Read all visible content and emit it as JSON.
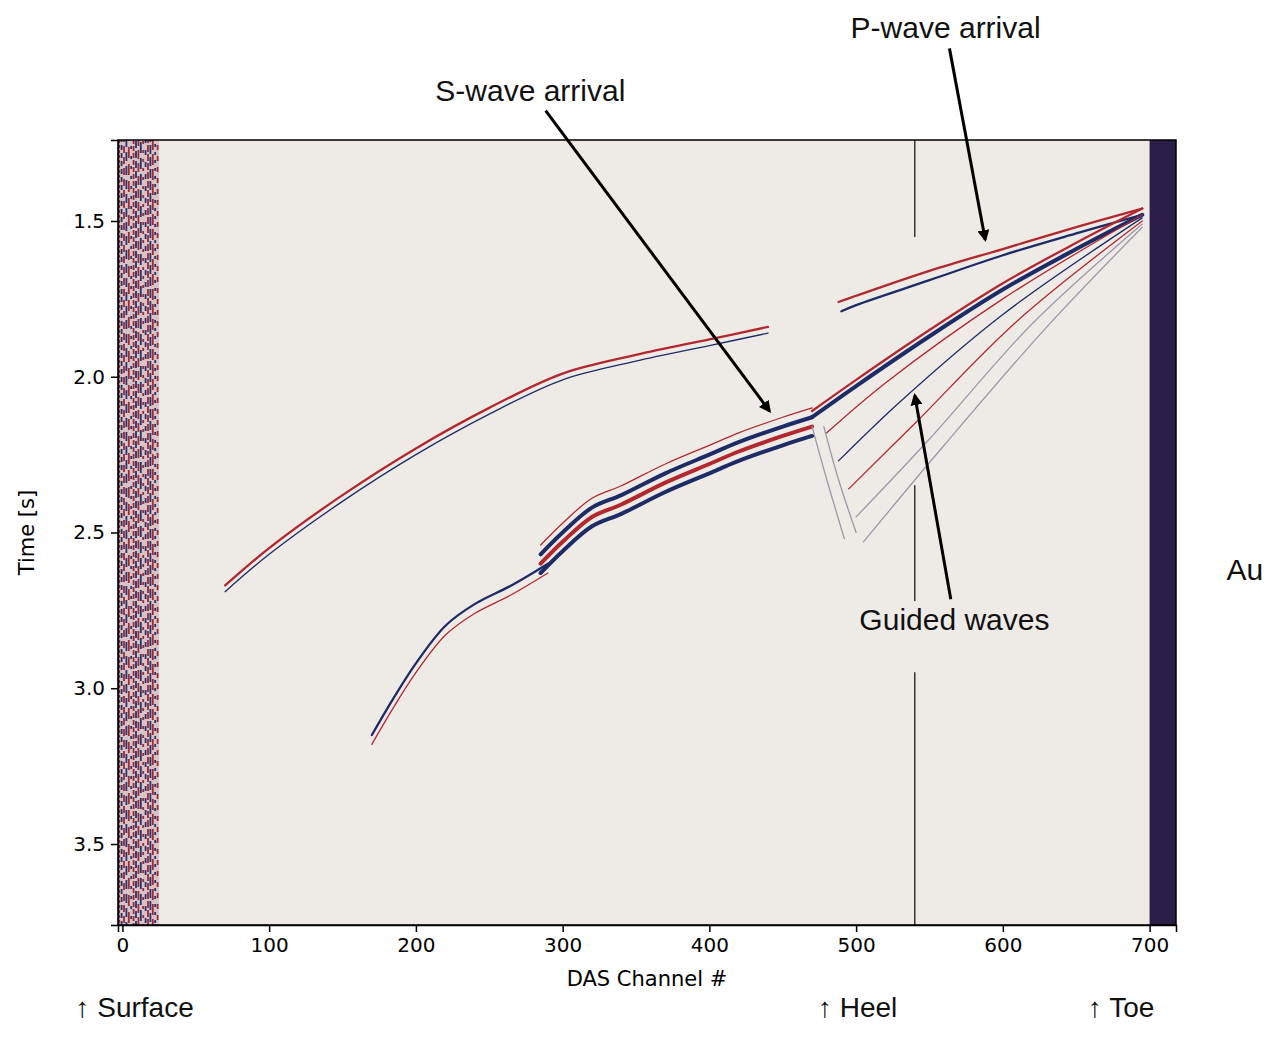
{
  "chart_data": {
    "type": "line",
    "xlabel": "DAS Channel #",
    "ylabel": "Time [s]",
    "xlim": [
      -3,
      718
    ],
    "ylim": [
      3.76,
      1.24
    ],
    "xticks": [
      0,
      100,
      200,
      300,
      400,
      500,
      600,
      700
    ],
    "yticks": [
      1.5,
      {
        "value": 2,
        "label": "2.0"
      },
      2.5,
      {
        "value": 3,
        "label": "3.0"
      },
      3.5
    ],
    "grid": false,
    "regions": [
      {
        "x": [
          -3,
          25
        ],
        "colors": [
          "#9e2a36",
          "#25356e",
          "#d8c4c6"
        ]
      },
      {
        "x": [
          700,
          718
        ],
        "color": "#2a1e48"
      }
    ],
    "series": [
      {
        "color": "#b2282f",
        "line_style": "solid",
        "x": [
          695,
          650,
          600,
          550,
          500,
          488
        ],
        "values": [
          1.46,
          1.52,
          1.59,
          1.66,
          1.74,
          1.76
        ]
      },
      {
        "color": "#1d2b66",
        "line_style": "solid",
        "x": [
          695,
          650,
          600,
          550,
          500,
          490
        ],
        "values": [
          1.48,
          1.54,
          1.61,
          1.69,
          1.77,
          1.79
        ]
      },
      {
        "color": "#b2282f",
        "line_style": "solid",
        "x": [
          440,
          400,
          350,
          300,
          250,
          200,
          150,
          100,
          70
        ],
        "values": [
          1.84,
          1.88,
          1.93,
          1.99,
          2.1,
          2.23,
          2.38,
          2.55,
          2.67
        ]
      },
      {
        "color": "#1d2b66",
        "line_style": "thin",
        "x": [
          440,
          400,
          350,
          300,
          250,
          200,
          150,
          100,
          70
        ],
        "values": [
          1.86,
          1.9,
          1.95,
          2.01,
          2.12,
          2.25,
          2.4,
          2.57,
          2.69
        ]
      },
      {
        "color": "#b2282f",
        "line_style": "solid",
        "x": [
          695,
          650,
          600,
          550,
          500,
          470
        ],
        "values": [
          1.46,
          1.57,
          1.7,
          1.85,
          2.01,
          2.11
        ]
      },
      {
        "color": "#1d2b66",
        "line_style": "thick",
        "x": [
          695,
          650,
          600,
          550,
          500,
          470
        ],
        "values": [
          1.48,
          1.59,
          1.72,
          1.87,
          2.03,
          2.13
        ]
      },
      {
        "color": "#1d2b66",
        "line_style": "thick",
        "x": [
          470,
          450,
          420,
          400,
          370,
          340,
          320,
          300,
          285
        ],
        "values": [
          2.13,
          2.16,
          2.21,
          2.25,
          2.31,
          2.38,
          2.42,
          2.5,
          2.57
        ]
      },
      {
        "color": "#b2282f",
        "line_style": "thick",
        "x": [
          470,
          450,
          420,
          400,
          370,
          340,
          320,
          300,
          285
        ],
        "values": [
          2.16,
          2.19,
          2.24,
          2.28,
          2.34,
          2.41,
          2.45,
          2.53,
          2.6
        ]
      },
      {
        "color": "#1d2b66",
        "line_style": "thick",
        "x": [
          470,
          450,
          420,
          400,
          370,
          340,
          320,
          300,
          285
        ],
        "values": [
          2.19,
          2.22,
          2.27,
          2.31,
          2.37,
          2.44,
          2.48,
          2.56,
          2.63
        ]
      },
      {
        "color": "#b2282f",
        "line_style": "thin",
        "x": [
          470,
          450,
          420,
          400,
          370,
          340,
          320,
          300,
          285
        ],
        "values": [
          2.1,
          2.13,
          2.18,
          2.22,
          2.28,
          2.35,
          2.39,
          2.47,
          2.54
        ]
      },
      {
        "color": "#1d2b66",
        "line_style": "solid",
        "x": [
          290,
          265,
          240,
          220,
          200,
          185,
          170
        ],
        "values": [
          2.6,
          2.67,
          2.73,
          2.8,
          2.92,
          3.03,
          3.15
        ]
      },
      {
        "color": "#b2282f",
        "line_style": "thin",
        "x": [
          290,
          265,
          240,
          220,
          200,
          185,
          170
        ],
        "values": [
          2.63,
          2.7,
          2.76,
          2.83,
          2.95,
          3.06,
          3.18
        ]
      },
      {
        "color": "#b2282f",
        "line_style": "thin",
        "x": [
          695,
          600,
          520,
          480
        ],
        "values": [
          1.48,
          1.75,
          2.02,
          2.18
        ]
      },
      {
        "color": "#1d2b66",
        "line_style": "thin",
        "x": [
          695,
          600,
          530,
          488
        ],
        "values": [
          1.49,
          1.8,
          2.08,
          2.27
        ]
      },
      {
        "color": "#b2282f",
        "line_style": "thin",
        "x": [
          695,
          610,
          540,
          495
        ],
        "values": [
          1.5,
          1.82,
          2.15,
          2.36
        ]
      },
      {
        "color": "#9a98a8",
        "line_style": "thin",
        "x": [
          695,
          620,
          550,
          500
        ],
        "values": [
          1.51,
          1.83,
          2.2,
          2.45
        ]
      },
      {
        "color": "#9a98a8",
        "line_style": "thin",
        "x": [
          695,
          630,
          560,
          505
        ],
        "values": [
          1.52,
          1.84,
          2.22,
          2.53
        ]
      },
      {
        "color": "#9a98a8",
        "line_style": "thin",
        "x": [
          470,
          480,
          492
        ],
        "values": [
          2.16,
          2.33,
          2.52
        ]
      },
      {
        "color": "#9a98a8",
        "line_style": "thin",
        "x": [
          478,
          488,
          500
        ],
        "values": [
          2.16,
          2.33,
          2.5
        ]
      },
      {
        "color": "#1a1a1a",
        "line_style": "thin",
        "x": [
          540,
          540,
          540,
          540,
          540,
          540,
          540,
          540
        ],
        "values": [
          1.24,
          1.55,
          null,
          2.35,
          2.72,
          null,
          2.95,
          3.76
        ]
      }
    ],
    "annotations": [
      {
        "text": "P-wave arrival",
        "xy": [
          588,
          1.56
        ],
        "xytext": [
          561,
          0.88
        ]
      },
      {
        "text": "S-wave arrival",
        "xy": [
          441,
          2.11
        ],
        "xytext": [
          278,
          1.08
        ]
      },
      {
        "text": "Guided waves",
        "xy": [
          540,
          2.06
        ],
        "xytext": [
          567,
          2.78
        ]
      },
      {
        "text": "Au",
        "xytext": [
          765,
          2.62
        ]
      }
    ],
    "axis_notes": [
      {
        "text": "↑ Surface",
        "x": -32
      },
      {
        "text": "↑ Heel",
        "x": 474
      },
      {
        "text": "↑ Toe",
        "x": 658
      }
    ]
  }
}
